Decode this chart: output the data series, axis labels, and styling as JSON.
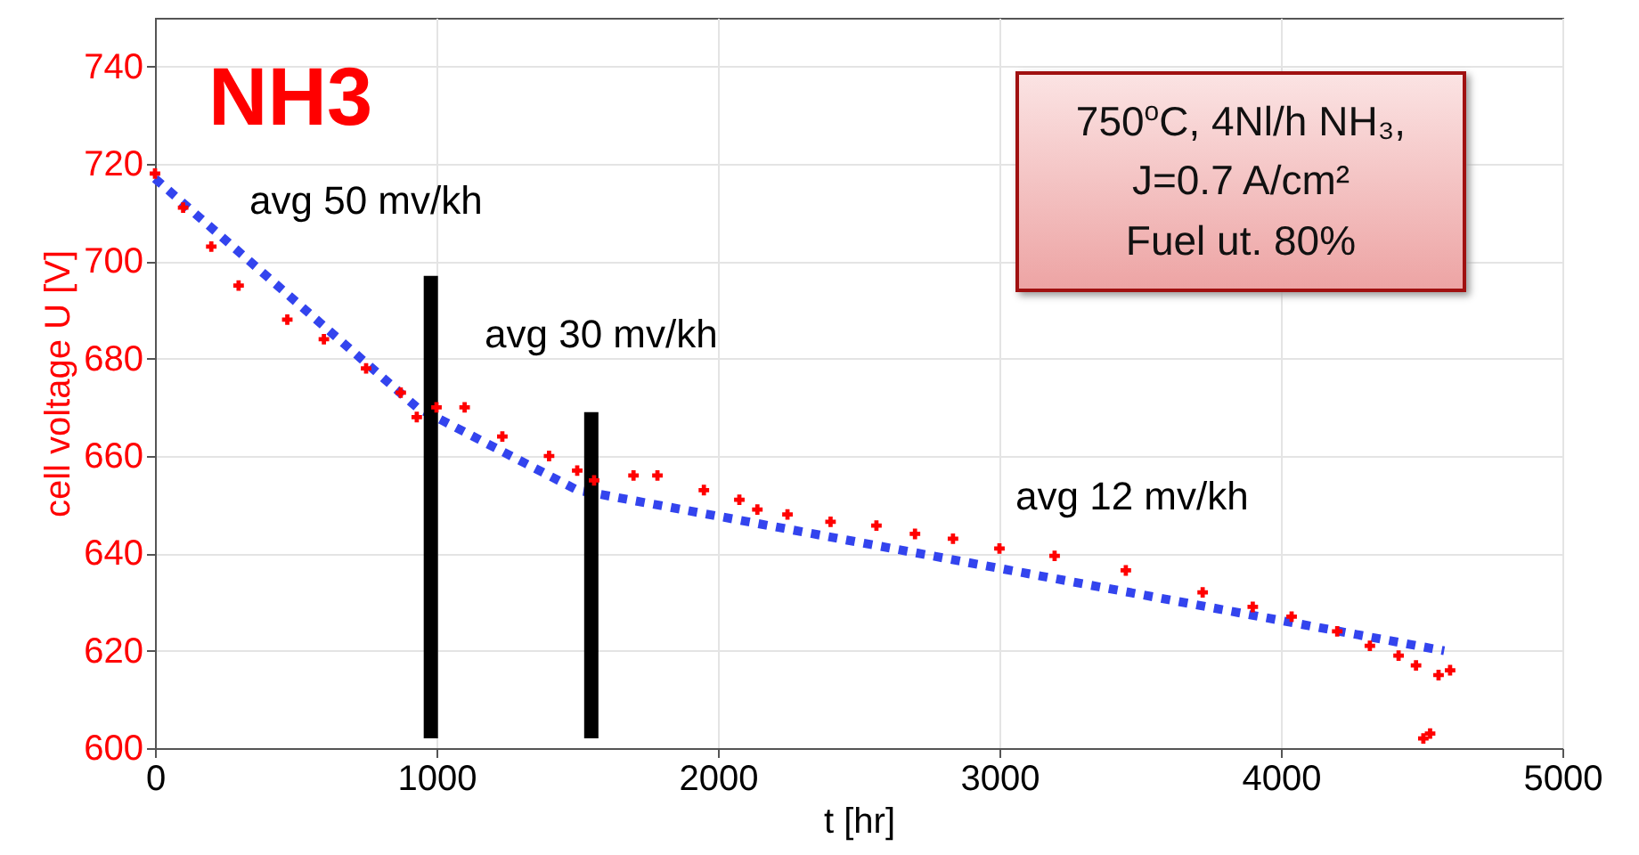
{
  "chart_data": {
    "type": "scatter",
    "title": "NH3",
    "xlabel": "t [hr]",
    "ylabel": "cell voltage U [V]",
    "xlim": [
      0,
      5000
    ],
    "ylim": [
      600,
      750
    ],
    "xticks": [
      0,
      1000,
      2000,
      3000,
      4000,
      5000
    ],
    "yticks": [
      600,
      620,
      640,
      660,
      680,
      700,
      720,
      740
    ],
    "grid": true,
    "annotations": [
      "avg 50 mv/kh",
      "avg 30 mv/kh",
      "avg 12 mv/kh",
      "750$^{o}$C, 4Nl/h NH₃,",
      "J=0.7 A/cm²",
      "Fuel ut. 80%"
    ],
    "series": [
      {
        "marker": "cross",
        "color": "#ff0000",
        "x": [
          0,
          100,
          200,
          297,
          470,
          600,
          750,
          873,
          930,
          1000,
          1100,
          1234,
          1400,
          1500,
          1560,
          1700,
          1785,
          1950,
          2076,
          2140,
          2247,
          2400,
          2563,
          2700,
          2835,
          3000,
          3196,
          3449,
          3722,
          3900,
          4038,
          4200,
          4316,
          4418,
          4480,
          4506,
          4530,
          4560,
          4601
        ],
        "values": [
          718,
          711,
          703,
          695,
          688,
          684,
          678,
          673,
          668,
          670,
          670,
          664,
          660,
          657,
          655,
          656,
          656,
          653,
          651,
          649,
          648,
          646.5,
          645.7,
          644,
          643,
          641,
          639.5,
          636.5,
          632,
          629,
          627,
          624,
          621,
          619,
          617,
          602,
          603,
          615,
          616
        ]
      },
      {
        "type": "line",
        "line_style": "dotted",
        "color": "#3344ee",
        "x": [
          0,
          930,
          1500,
          4580
        ],
        "values": [
          717,
          670,
          653,
          620
        ]
      },
      {
        "type": "line",
        "line_style": "solid",
        "color": "#000000",
        "x": [
          980,
          980
        ],
        "values": [
          602,
          697
        ]
      },
      {
        "type": "line",
        "line_style": "solid",
        "color": "#000000",
        "x": [
          1550,
          1550
        ],
        "values": [
          602,
          669
        ]
      }
    ]
  }
}
